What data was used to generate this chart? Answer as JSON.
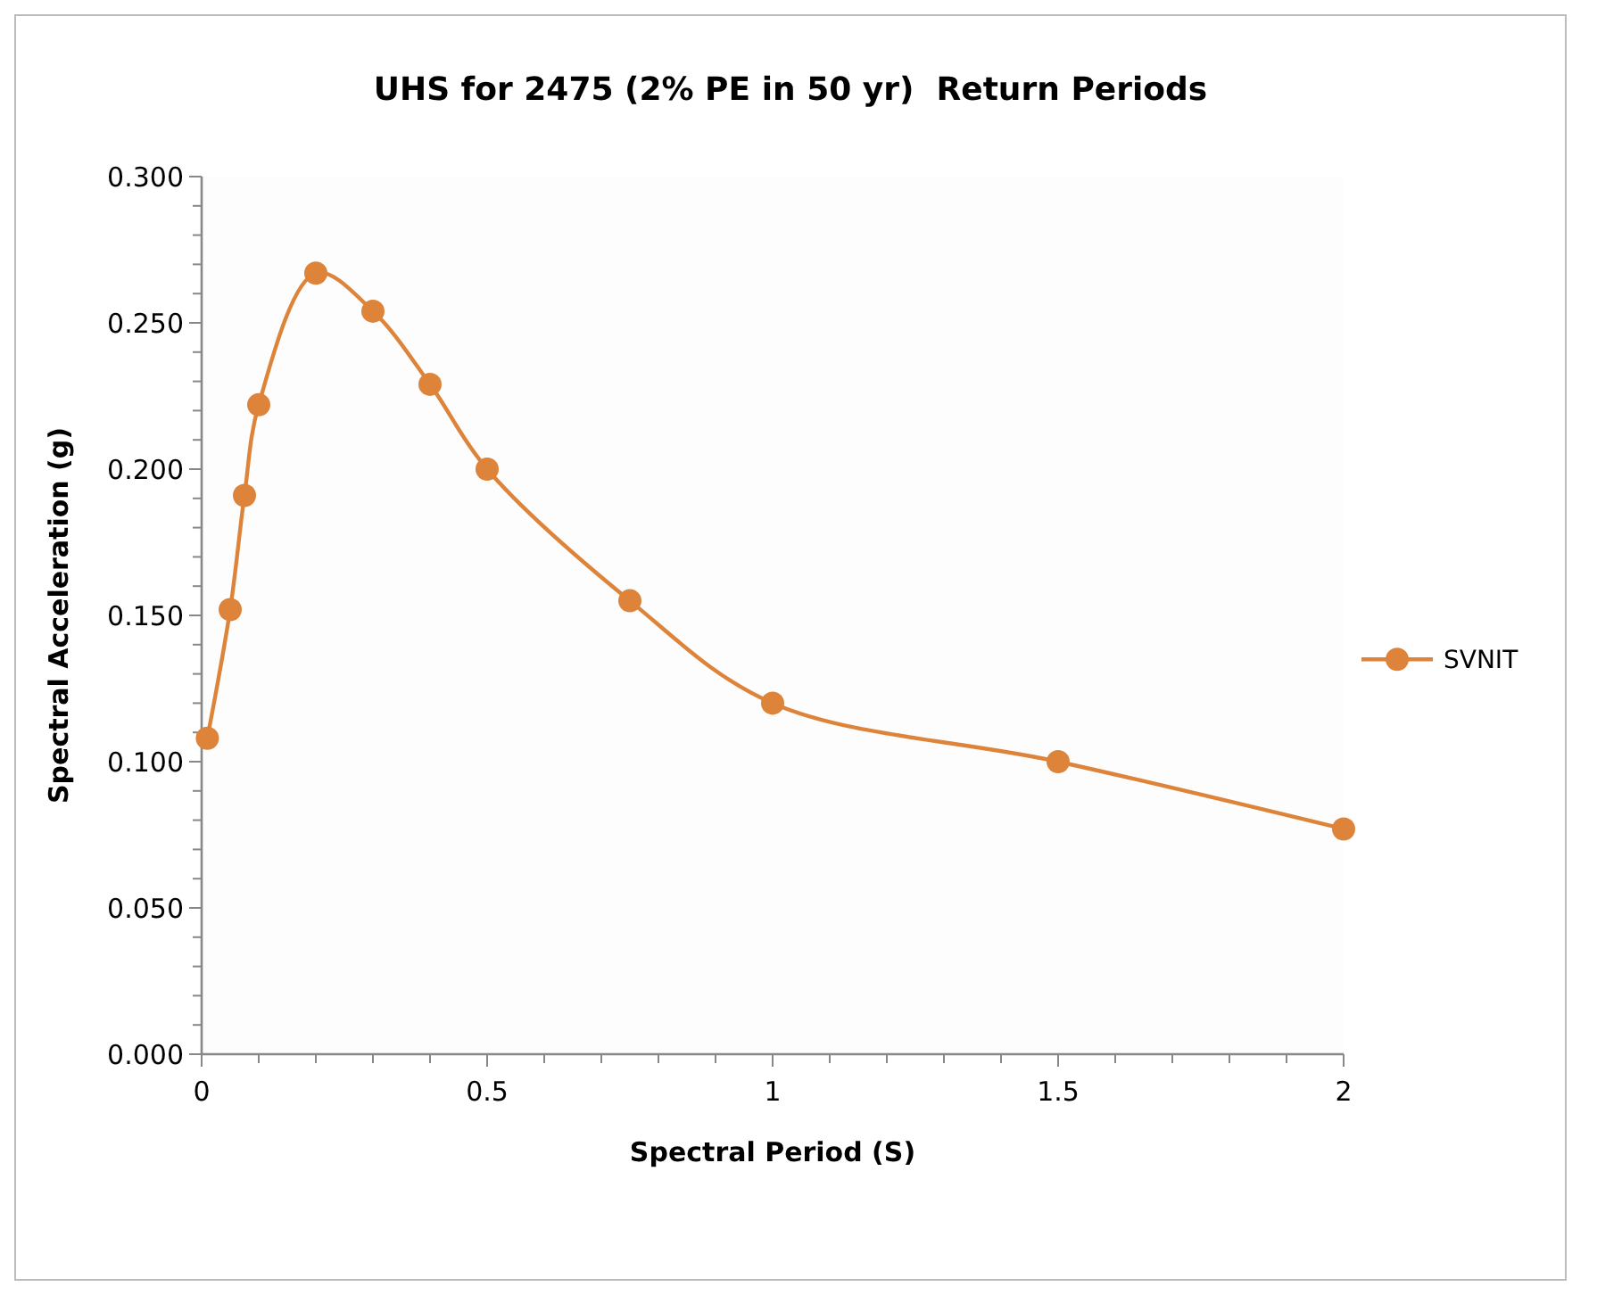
{
  "chart_data": {
    "type": "line",
    "title": "UHS for 2475 (2% PE in 50 yr)  Return Periods",
    "xlabel": "Spectral Period (S)",
    "ylabel": "Spectral Acceleration (g)",
    "x": [
      0.01,
      0.05,
      0.075,
      0.1,
      0.2,
      0.3,
      0.4,
      0.5,
      0.75,
      1,
      1.5,
      2
    ],
    "series": [
      {
        "name": "SVNIT",
        "color": "#dd843a",
        "values": [
          0.108,
          0.152,
          0.191,
          0.222,
          0.267,
          0.254,
          0.229,
          0.2,
          0.155,
          0.12,
          0.1,
          0.077
        ]
      }
    ],
    "xlim": [
      0,
      2
    ],
    "xticks": [
      0,
      {
        "value": 0.1,
        "label": null
      },
      {
        "value": 0.2,
        "label": null
      },
      {
        "value": 0.3,
        "label": null
      },
      {
        "value": 0.4,
        "label": null
      },
      0.5,
      {
        "value": 0.6,
        "label": null
      },
      {
        "value": 0.7,
        "label": null
      },
      {
        "value": 0.8,
        "label": null
      },
      {
        "value": 0.9,
        "label": null
      },
      1,
      {
        "value": 1.1,
        "label": null
      },
      {
        "value": 1.2,
        "label": null
      },
      {
        "value": 1.3,
        "label": null
      },
      {
        "value": 1.4,
        "label": null
      },
      1.5,
      {
        "value": 1.6,
        "label": null
      },
      {
        "value": 1.7,
        "label": null
      },
      {
        "value": 1.8,
        "label": null
      },
      {
        "value": 1.9,
        "label": null
      },
      2
    ],
    "ylim": [
      0,
      0.3
    ],
    "yticks": [
      {
        "value": 0,
        "label": "0.000"
      },
      {
        "value": 0.01,
        "label": null
      },
      {
        "value": 0.02,
        "label": null
      },
      {
        "value": 0.03,
        "label": null
      },
      {
        "value": 0.04,
        "label": null
      },
      {
        "value": 0.05,
        "label": "0.050"
      },
      {
        "value": 0.06,
        "label": null
      },
      {
        "value": 0.07,
        "label": null
      },
      {
        "value": 0.08,
        "label": null
      },
      {
        "value": 0.09,
        "label": null
      },
      {
        "value": 0.1,
        "label": "0.100"
      },
      {
        "value": 0.11,
        "label": null
      },
      {
        "value": 0.12,
        "label": null
      },
      {
        "value": 0.13,
        "label": null
      },
      {
        "value": 0.14,
        "label": null
      },
      {
        "value": 0.15,
        "label": "0.150"
      },
      {
        "value": 0.16,
        "label": null
      },
      {
        "value": 0.17,
        "label": null
      },
      {
        "value": 0.18,
        "label": null
      },
      {
        "value": 0.19,
        "label": null
      },
      {
        "value": 0.2,
        "label": "0.200"
      },
      {
        "value": 0.21,
        "label": null
      },
      {
        "value": 0.22,
        "label": null
      },
      {
        "value": 0.23,
        "label": null
      },
      {
        "value": 0.24,
        "label": null
      },
      {
        "value": 0.25,
        "label": "0.250"
      },
      {
        "value": 0.26,
        "label": null
      },
      {
        "value": 0.27,
        "label": null
      },
      {
        "value": 0.28,
        "label": null
      },
      {
        "value": 0.29,
        "label": null
      },
      {
        "value": 0.3,
        "label": "0.300"
      }
    ],
    "grid": false,
    "legend": "right",
    "marker": "circle",
    "line_style": "solid"
  }
}
